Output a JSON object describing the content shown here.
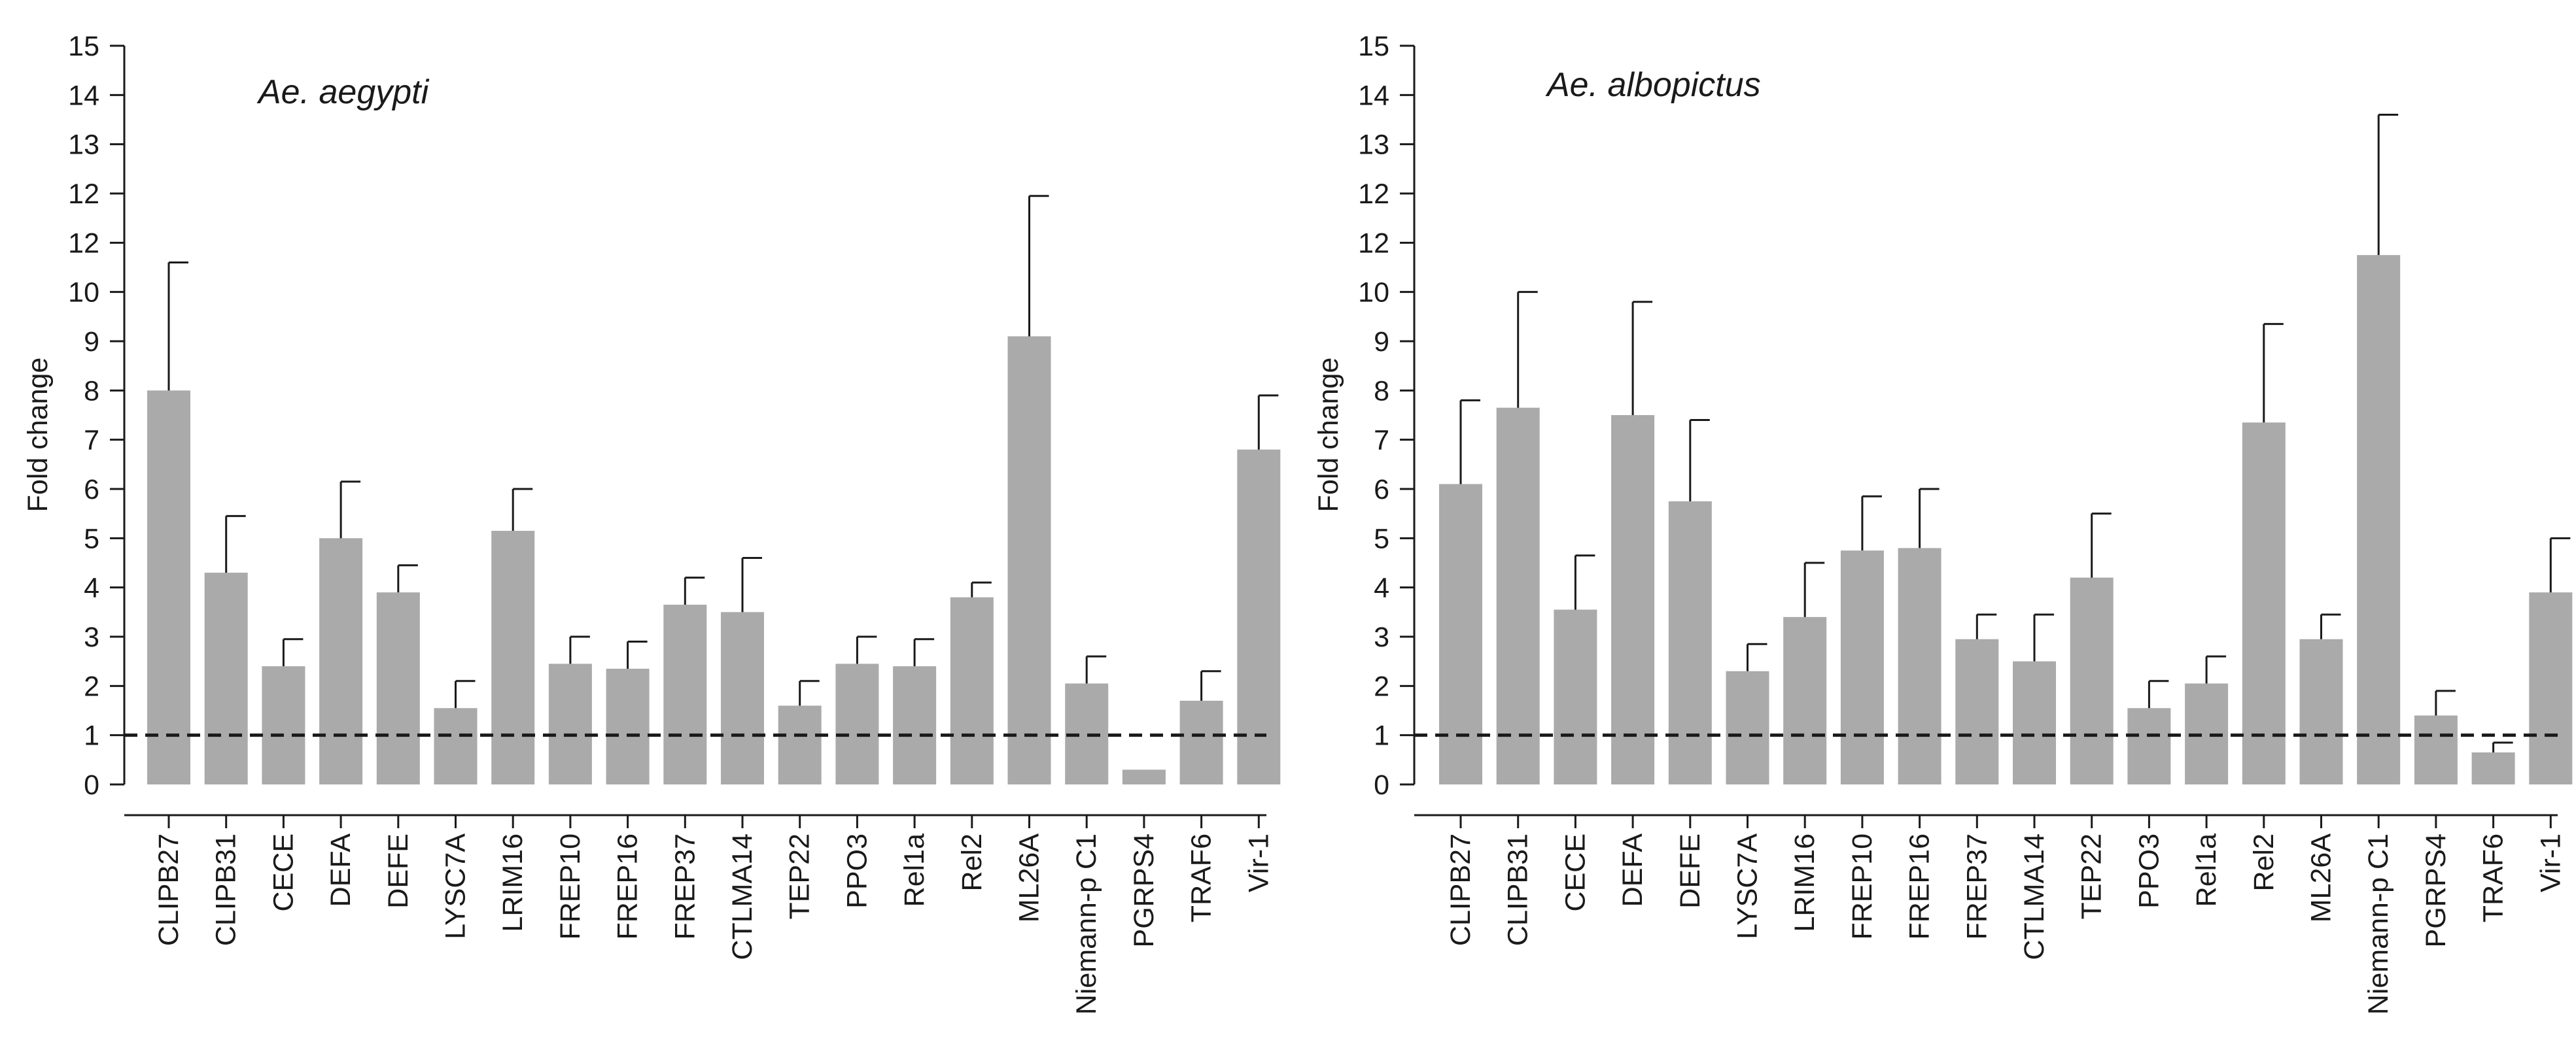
{
  "figure": {
    "background": "#ffffff",
    "bar_color": "#aaaaaa",
    "line_color": "#1a1a1a"
  },
  "chart_data": [
    {
      "type": "bar",
      "title": "Ae. aegypti",
      "xlabel": "",
      "ylabel": "Fold change",
      "ylim": [
        0,
        15
      ],
      "yticks": [
        "0",
        "1",
        "2",
        "3",
        "4",
        "5",
        "6",
        "7",
        "8",
        "9",
        "10",
        "12",
        "12",
        "13",
        "14",
        "15"
      ],
      "reference_line": 1,
      "categories": [
        "CLIPB27",
        "CLIPB31",
        "CECE",
        "DEFA",
        "DEFE",
        "LYSC7A",
        "LRIM16",
        "FREP10",
        "FREP16",
        "FREP37",
        "CTLMA14",
        "TEP22",
        "PPO3",
        "Rel1a",
        "Rel2",
        "ML26A",
        "Niemann-p C1",
        "PGRPS4",
        "TRAF6",
        "Vir-1"
      ],
      "values": [
        8.0,
        4.3,
        2.4,
        5.0,
        3.9,
        1.55,
        5.15,
        2.45,
        2.35,
        3.65,
        3.5,
        1.6,
        2.45,
        2.4,
        3.8,
        9.1,
        2.05,
        0.3,
        1.7,
        6.8
      ],
      "errors": [
        2.6,
        1.15,
        0.55,
        1.15,
        0.55,
        0.55,
        0.85,
        0.55,
        0.55,
        0.55,
        1.1,
        0.5,
        0.55,
        0.55,
        0.3,
        2.85,
        0.55,
        0,
        0.6,
        1.1
      ]
    },
    {
      "type": "bar",
      "title": "Ae. albopictus",
      "xlabel": "",
      "ylabel": "Fold change",
      "ylim": [
        0,
        15
      ],
      "yticks": [
        "0",
        "1",
        "2",
        "3",
        "4",
        "5",
        "6",
        "7",
        "8",
        "9",
        "10",
        "12",
        "12",
        "13",
        "14",
        "15"
      ],
      "reference_line": 1,
      "categories": [
        "CLIPB27",
        "CLIPB31",
        "CECE",
        "DEFA",
        "DEFE",
        "LYSC7A",
        "LRIM16",
        "FREP10",
        "FREP16",
        "FREP37",
        "CTLMA14",
        "TEP22",
        "PPO3",
        "Rel1a",
        "Rel2",
        "ML26A",
        "Niemann-p C1",
        "PGRPS4",
        "TRAF6",
        "Vir-1"
      ],
      "values": [
        6.1,
        7.65,
        3.55,
        7.5,
        5.75,
        2.3,
        3.4,
        4.75,
        4.8,
        2.95,
        2.5,
        4.2,
        1.55,
        2.05,
        7.35,
        2.95,
        10.75,
        1.4,
        0.65,
        3.9
      ],
      "errors": [
        1.7,
        2.35,
        1.1,
        2.3,
        1.65,
        0.55,
        1.1,
        1.1,
        1.2,
        0.5,
        0.95,
        1.3,
        0.55,
        0.55,
        2.0,
        0.5,
        2.85,
        0.5,
        0.2,
        1.1
      ]
    }
  ]
}
